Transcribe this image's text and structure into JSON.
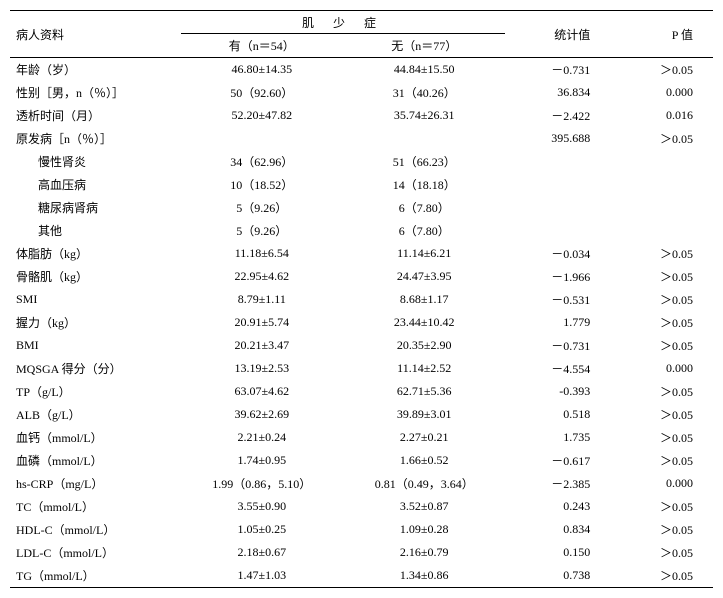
{
  "headers": {
    "row_label": "病人资料",
    "group_title": "肌 少 症",
    "sub1": "有（n＝54）",
    "sub2": "无（n＝77）",
    "stat": "统计值",
    "pval": "P 值"
  },
  "rows": [
    {
      "label": "年龄（岁）",
      "g1": "46.80±14.35",
      "g2": "44.84±15.50",
      "stat": "－0.731",
      "p": "＞0.05",
      "indent": false
    },
    {
      "label": "性别［男，n（％）］",
      "g1": "50（92.60）",
      "g2": "31（40.26）",
      "stat": "36.834",
      "p": "0.000",
      "indent": false
    },
    {
      "label": "透析时间（月）",
      "g1": "52.20±47.82",
      "g2": "35.74±26.31",
      "stat": "－2.422",
      "p": "0.016",
      "indent": false
    },
    {
      "label": "原发病［n（％）］",
      "g1": "",
      "g2": "",
      "stat": "395.688",
      "p": "＞0.05",
      "indent": false
    },
    {
      "label": "慢性肾炎",
      "g1": "34（62.96）",
      "g2": "51（66.23）",
      "stat": "",
      "p": "",
      "indent": true
    },
    {
      "label": "高血压病",
      "g1": "10（18.52）",
      "g2": "14（18.18）",
      "stat": "",
      "p": "",
      "indent": true
    },
    {
      "label": "糖尿病肾病",
      "g1": "5（9.26）",
      "g2": "6（7.80）",
      "stat": "",
      "p": "",
      "indent": true
    },
    {
      "label": "其他",
      "g1": "5（9.26）",
      "g2": "6（7.80）",
      "stat": "",
      "p": "",
      "indent": true
    },
    {
      "label": "体脂肪（kg）",
      "g1": "11.18±6.54",
      "g2": "11.14±6.21",
      "stat": "－0.034",
      "p": "＞0.05",
      "indent": false
    },
    {
      "label": "骨骼肌（kg）",
      "g1": "22.95±4.62",
      "g2": "24.47±3.95",
      "stat": "－1.966",
      "p": "＞0.05",
      "indent": false
    },
    {
      "label": "SMI",
      "g1": "8.79±1.11",
      "g2": "8.68±1.17",
      "stat": "－0.531",
      "p": "＞0.05",
      "indent": false
    },
    {
      "label": "握力（kg）",
      "g1": "20.91±5.74",
      "g2": "23.44±10.42",
      "stat": "1.779",
      "p": "＞0.05",
      "indent": false
    },
    {
      "label": "BMI",
      "g1": "20.21±3.47",
      "g2": "20.35±2.90",
      "stat": "－0.731",
      "p": "＞0.05",
      "indent": false
    },
    {
      "label": "MQSGA 得分（分）",
      "g1": "13.19±2.53",
      "g2": "11.14±2.52",
      "stat": "－4.554",
      "p": "0.000",
      "indent": false
    },
    {
      "label": "TP（g/L）",
      "g1": "63.07±4.62",
      "g2": "62.71±5.36",
      "stat": "-0.393",
      "p": "＞0.05",
      "indent": false
    },
    {
      "label": "ALB（g/L）",
      "g1": "39.62±2.69",
      "g2": "39.89±3.01",
      "stat": "0.518",
      "p": "＞0.05",
      "indent": false
    },
    {
      "label": "血钙（mmol/L）",
      "g1": "2.21±0.24",
      "g2": "2.27±0.21",
      "stat": "1.735",
      "p": "＞0.05",
      "indent": false
    },
    {
      "label": "血磷（mmol/L）",
      "g1": "1.74±0.95",
      "g2": "1.66±0.52",
      "stat": "－0.617",
      "p": "＞0.05",
      "indent": false
    },
    {
      "label": "hs-CRP（mg/L）",
      "g1": "1.99（0.86，5.10）",
      "g2": "0.81（0.49，3.64）",
      "stat": "－2.385",
      "p": "0.000",
      "indent": false
    },
    {
      "label": "TC（mmol/L）",
      "g1": "3.55±0.90",
      "g2": "3.52±0.87",
      "stat": "0.243",
      "p": "＞0.05",
      "indent": false
    },
    {
      "label": "HDL-C（mmol/L）",
      "g1": "1.05±0.25",
      "g2": "1.09±0.28",
      "stat": "0.834",
      "p": "＞0.05",
      "indent": false
    },
    {
      "label": "LDL-C（mmol/L）",
      "g1": "2.18±0.67",
      "g2": "2.16±0.79",
      "stat": "0.150",
      "p": "＞0.05",
      "indent": false
    },
    {
      "label": "TG（mmol/L）",
      "g1": "1.47±1.03",
      "g2": "1.34±0.86",
      "stat": "0.738",
      "p": "＞0.05",
      "indent": false
    }
  ]
}
